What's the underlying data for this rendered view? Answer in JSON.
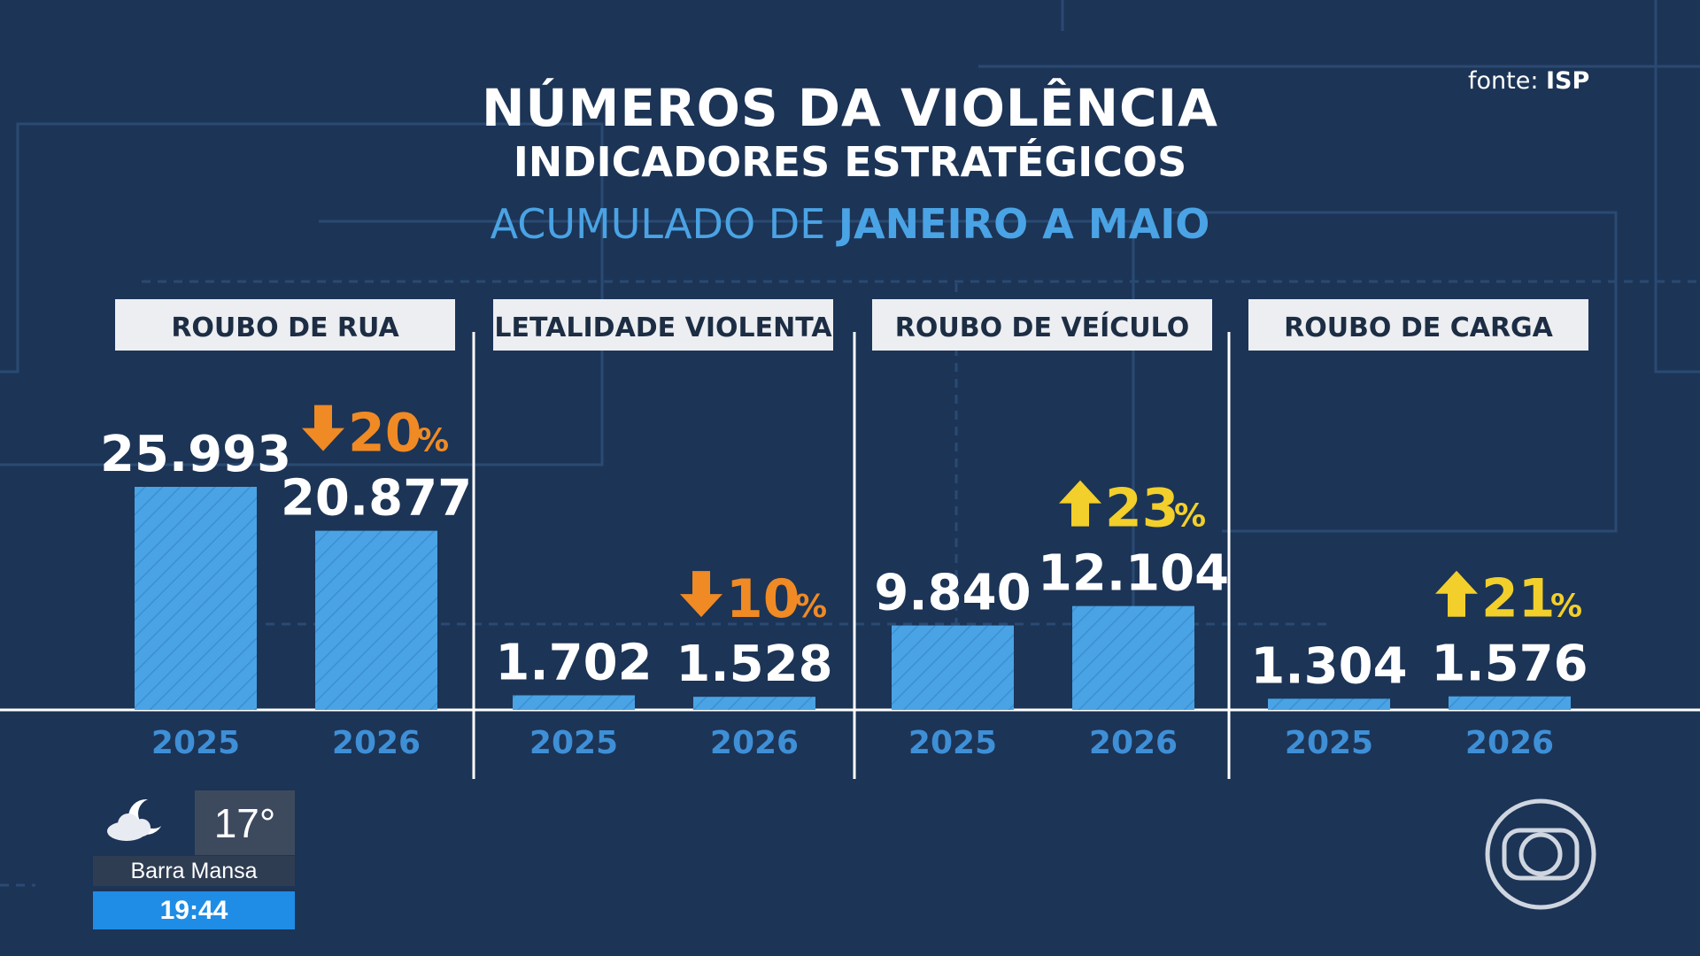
{
  "header": {
    "title": "NÚMEROS DA VIOLÊNCIA",
    "subtitle": "INDICADORES ESTRATÉGICOS",
    "period_prefix": "ACUMULADO DE ",
    "period_bold": "JANEIRO A MAIO",
    "source_prefix": "fonte: ",
    "source_name": "ISP"
  },
  "colors": {
    "background": "#1c3456",
    "bar": "#4aa3e4",
    "decrease": "#f08a24",
    "increase": "#f2cf2a",
    "year_label": "#3e8fd6"
  },
  "chart_data": {
    "type": "bar",
    "years": [
      "2025",
      "2026"
    ],
    "groups": [
      {
        "category": "ROUBO DE RUA",
        "values": [
          25993,
          20877
        ],
        "labels": [
          "25.993",
          "20.877"
        ],
        "change": {
          "direction": "down",
          "value": "20",
          "unit": "%"
        }
      },
      {
        "category": "LETALIDADE VIOLENTA",
        "values": [
          1702,
          1528
        ],
        "labels": [
          "1.702",
          "1.528"
        ],
        "change": {
          "direction": "down",
          "value": "10",
          "unit": "%"
        }
      },
      {
        "category": "ROUBO DE VEÍCULO",
        "values": [
          9840,
          12104
        ],
        "labels": [
          "9.840",
          "12.104"
        ],
        "change": {
          "direction": "up",
          "value": "23",
          "unit": "%"
        }
      },
      {
        "category": "ROUBO DE CARGA",
        "values": [
          1304,
          1576
        ],
        "labels": [
          "1.304",
          "1.576"
        ],
        "change": {
          "direction": "up",
          "value": "21",
          "unit": "%"
        }
      }
    ],
    "grid": false,
    "legend": "none"
  },
  "weather": {
    "icon": "partly-cloudy-night-icon",
    "temperature": "17°",
    "city": "Barra Mansa",
    "time": "19:44"
  },
  "logo": "globo-logo"
}
